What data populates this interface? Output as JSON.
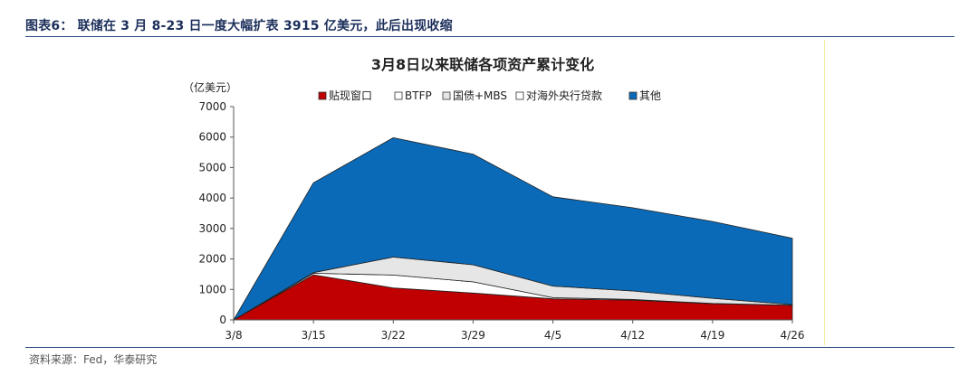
{
  "figure": {
    "header": "图表6： 联储在 3 月 8-23 日一度大幅扩表 3915 亿美元，此后出现收缩",
    "source": "资料来源：Fed，华泰研究"
  },
  "chart_data": {
    "type": "area",
    "stacked": true,
    "title": "3月8日以来联储各项资产累计变化",
    "unit": "（亿美元）",
    "categories": [
      "3/8",
      "3/15",
      "3/22",
      "3/29",
      "4/5",
      "4/12",
      "4/19",
      "4/26"
    ],
    "ylim": [
      0,
      7000
    ],
    "yticks": [
      0,
      1000,
      2000,
      3000,
      4000,
      5000,
      6000,
      7000
    ],
    "grid": false,
    "legend_position": "top",
    "series": [
      {
        "name": "贴现窗口",
        "color": "#c00000",
        "values": [
          0,
          1480,
          1050,
          880,
          690,
          650,
          530,
          480
        ]
      },
      {
        "name": "BTFP",
        "color": "#ffffff",
        "values": [
          0,
          50,
          420,
          370,
          40,
          20,
          10,
          0
        ]
      },
      {
        "name": "国债+MBS",
        "color": "#e6e6e6",
        "values": [
          0,
          20,
          590,
          560,
          380,
          280,
          170,
          20
        ]
      },
      {
        "name": "对海外央行贷款",
        "color": "#ffffff",
        "values": [
          0,
          0,
          0,
          0,
          0,
          0,
          0,
          0
        ]
      },
      {
        "name": "其他",
        "color": "#0a6ab8",
        "values": [
          0,
          2950,
          3920,
          3630,
          2930,
          2730,
          2520,
          2180
        ]
      }
    ]
  }
}
